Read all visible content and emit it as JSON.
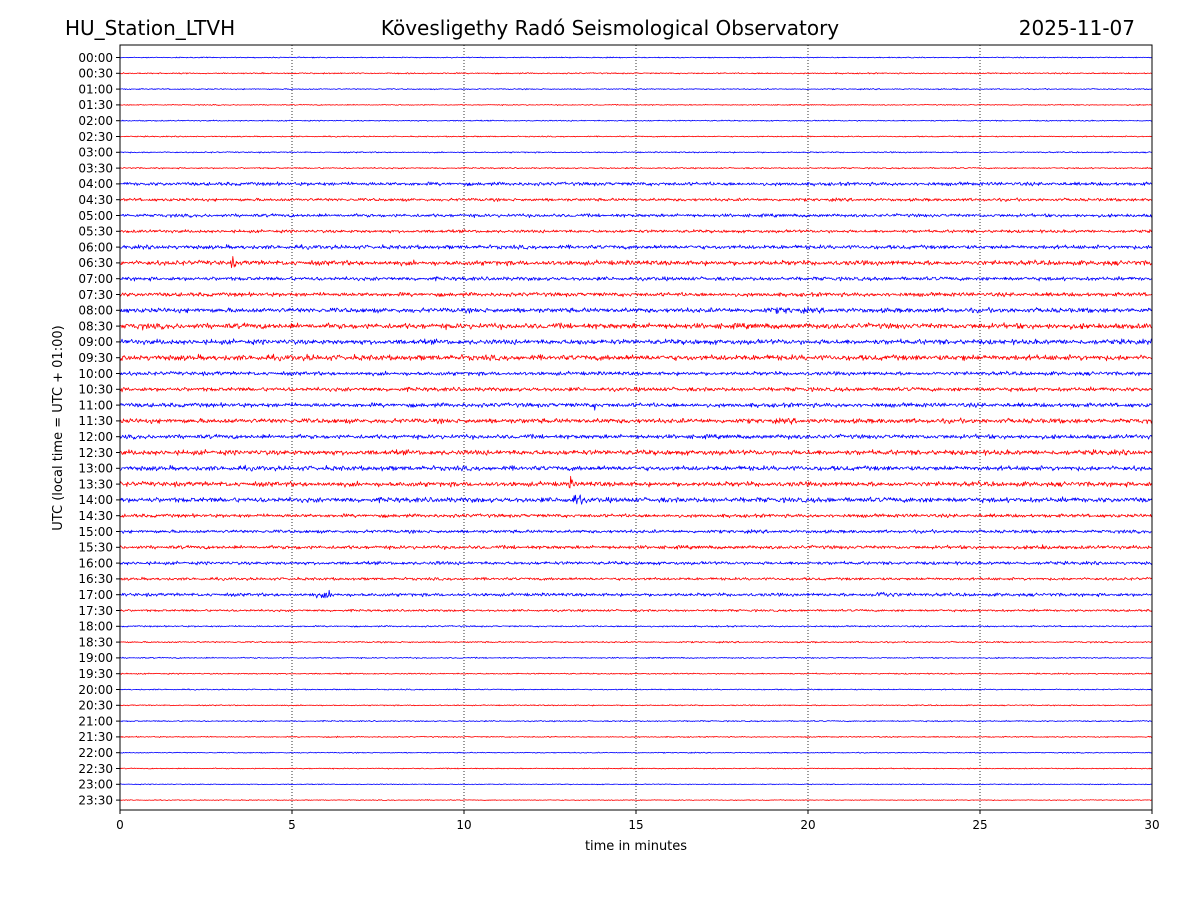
{
  "header": {
    "station": "HU_Station_LTVH",
    "observatory": "Kövesligethy Radó Seismological Observatory",
    "date": "2025-11-07"
  },
  "chart_data": {
    "type": "line",
    "title": "Kövesligethy Radó Seismological Observatory",
    "xlabel": "time in minutes",
    "ylabel": "UTC (local time = UTC + 01:00)",
    "xlim": [
      0,
      30
    ],
    "x_ticks": [
      "0",
      "5",
      "10",
      "15",
      "20",
      "25",
      "30"
    ],
    "x_tick_values": [
      0,
      5,
      10,
      15,
      20,
      25,
      30
    ],
    "grid": "vertical dotted lines at 5-minute intervals",
    "colors": {
      "even_trace": "#0000ff",
      "odd_trace": "#ff0000",
      "grid": "#000000"
    },
    "traces": [
      {
        "label": "00:00",
        "amp": 0.4,
        "bursts": []
      },
      {
        "label": "00:30",
        "amp": 0.5,
        "bursts": [
          [
            18.8,
            4.5,
            0.7
          ],
          [
            15.5,
            2.0,
            0.6
          ]
        ]
      },
      {
        "label": "01:00",
        "amp": 0.45,
        "bursts": [
          [
            24.5,
            1.5,
            0.4
          ]
        ]
      },
      {
        "label": "01:30",
        "amp": 0.4,
        "bursts": []
      },
      {
        "label": "02:00",
        "amp": 0.45,
        "bursts": [
          [
            25.3,
            2.5,
            0.5
          ]
        ]
      },
      {
        "label": "02:30",
        "amp": 0.45,
        "bursts": [
          [
            7.9,
            1.5,
            0.5
          ],
          [
            25.5,
            1.5,
            0.4
          ]
        ]
      },
      {
        "label": "03:00",
        "amp": 0.5,
        "bursts": [
          [
            2.8,
            1.2,
            0.4
          ]
        ]
      },
      {
        "label": "03:30",
        "amp": 0.55,
        "bursts": [
          [
            23.2,
            1.0,
            0.5
          ]
        ]
      },
      {
        "label": "04:00",
        "amp": 1.4,
        "bursts": [
          [
            7.2,
            3.0,
            1.6
          ],
          [
            9.3,
            2.0,
            1.5
          ],
          [
            18.0,
            3.0,
            1.0
          ]
        ]
      },
      {
        "label": "04:30",
        "amp": 1.2,
        "bursts": [
          [
            3.5,
            1.5,
            1.5
          ],
          [
            27.2,
            1.5,
            1.0
          ]
        ]
      },
      {
        "label": "05:00",
        "amp": 1.3,
        "bursts": [
          [
            6.5,
            2.5,
            1.5
          ],
          [
            21.5,
            1.5,
            1.4
          ]
        ]
      },
      {
        "label": "05:30",
        "amp": 1.2,
        "bursts": [
          [
            2.5,
            1.5,
            0.9
          ]
        ]
      },
      {
        "label": "06:00",
        "amp": 1.6,
        "bursts": [
          [
            10.0,
            3.0,
            1.2
          ],
          [
            27.0,
            3.0,
            1.2
          ]
        ]
      },
      {
        "label": "06:30",
        "amp": 1.9,
        "bursts": [
          [
            2.6,
            2.0,
            2.0
          ],
          [
            3.3,
            0.3,
            6.5
          ],
          [
            15.0,
            2.0,
            1.3
          ]
        ]
      },
      {
        "label": "07:00",
        "amp": 1.5,
        "bursts": [
          [
            14.5,
            2.0,
            1.2
          ]
        ]
      },
      {
        "label": "07:30",
        "amp": 1.6,
        "bursts": []
      },
      {
        "label": "08:00",
        "amp": 1.9,
        "bursts": [
          [
            19.3,
            5.0,
            3.2
          ]
        ]
      },
      {
        "label": "08:30",
        "amp": 2.2,
        "bursts": [
          [
            0.6,
            1.0,
            3.5
          ],
          [
            20.0,
            3.0,
            2.2
          ],
          [
            28.0,
            2.0,
            1.8
          ]
        ]
      },
      {
        "label": "09:00",
        "amp": 2.0,
        "bursts": [
          [
            13.4,
            0.3,
            5.5
          ],
          [
            28.5,
            3.0,
            2.5
          ]
        ]
      },
      {
        "label": "09:30",
        "amp": 2.2,
        "bursts": [
          [
            0.4,
            1.0,
            2.5
          ],
          [
            5.5,
            1.0,
            3.5
          ],
          [
            21.0,
            2.0,
            2.5
          ],
          [
            24.5,
            0.3,
            4.5
          ],
          [
            28.0,
            1.0,
            2.5
          ]
        ]
      },
      {
        "label": "10:00",
        "amp": 1.5,
        "bursts": [
          [
            2.9,
            0.6,
            2.2
          ]
        ]
      },
      {
        "label": "10:30",
        "amp": 1.6,
        "bursts": [
          [
            16.0,
            3.0,
            2.0
          ],
          [
            19.5,
            1.5,
            1.5
          ]
        ]
      },
      {
        "label": "11:00",
        "amp": 1.7,
        "bursts": [
          [
            13.8,
            0.4,
            3.5
          ],
          [
            20.0,
            3.0,
            2.0
          ]
        ]
      },
      {
        "label": "11:30",
        "amp": 1.9,
        "bursts": [
          [
            11.7,
            0.4,
            3.0
          ],
          [
            14.0,
            0.5,
            2.5
          ],
          [
            19.5,
            3.5,
            2.5
          ]
        ]
      },
      {
        "label": "12:00",
        "amp": 1.7,
        "bursts": [
          [
            19.5,
            2.5,
            2.5
          ]
        ]
      },
      {
        "label": "12:30",
        "amp": 2.0,
        "bursts": [
          [
            11.5,
            2.0,
            2.0
          ],
          [
            20.0,
            2.5,
            2.5
          ],
          [
            29.0,
            2.0,
            2.0
          ]
        ]
      },
      {
        "label": "13:00",
        "amp": 1.9,
        "bursts": [
          [
            7.7,
            1.5,
            2.8
          ]
        ]
      },
      {
        "label": "13:30",
        "amp": 1.9,
        "bursts": [
          [
            13.1,
            0.4,
            5.5
          ]
        ]
      },
      {
        "label": "14:00",
        "amp": 2.0,
        "bursts": [
          [
            12.9,
            0.3,
            4.0
          ],
          [
            13.3,
            0.6,
            8.5
          ],
          [
            20.5,
            3.5,
            2.5
          ],
          [
            23.2,
            2.0,
            3.0
          ]
        ]
      },
      {
        "label": "14:30",
        "amp": 1.4,
        "bursts": [
          [
            17.5,
            1.5,
            1.4
          ]
        ]
      },
      {
        "label": "15:00",
        "amp": 1.3,
        "bursts": [
          [
            4.5,
            0.6,
            1.5
          ]
        ]
      },
      {
        "label": "15:30",
        "amp": 1.4,
        "bursts": [
          [
            5.2,
            1.0,
            2.0
          ],
          [
            11.5,
            0.6,
            1.8
          ],
          [
            26.8,
            2.5,
            2.5
          ]
        ]
      },
      {
        "label": "16:00",
        "amp": 1.3,
        "bursts": [
          [
            9.3,
            2.0,
            2.0
          ],
          [
            27.0,
            2.0,
            1.8
          ]
        ]
      },
      {
        "label": "16:30",
        "amp": 1.1,
        "bursts": []
      },
      {
        "label": "17:00",
        "amp": 1.3,
        "bursts": [
          [
            6.0,
            2.0,
            3.5
          ],
          [
            22.2,
            2.0,
            3.5
          ]
        ]
      },
      {
        "label": "17:30",
        "amp": 0.9,
        "bursts": [
          [
            12.5,
            1.5,
            1.2
          ],
          [
            15.5,
            1.5,
            1.0
          ]
        ]
      },
      {
        "label": "18:00",
        "amp": 0.6,
        "bursts": []
      },
      {
        "label": "18:30",
        "amp": 0.6,
        "bursts": [
          [
            26.5,
            1.0,
            0.5
          ]
        ]
      },
      {
        "label": "19:00",
        "amp": 0.5,
        "bursts": []
      },
      {
        "label": "19:30",
        "amp": 0.5,
        "bursts": [
          [
            11.8,
            1.0,
            0.4
          ]
        ]
      },
      {
        "label": "20:00",
        "amp": 0.45,
        "bursts": []
      },
      {
        "label": "20:30",
        "amp": 0.45,
        "bursts": [
          [
            23.3,
            0.6,
            0.5
          ]
        ]
      },
      {
        "label": "21:00",
        "amp": 0.5,
        "bursts": [
          [
            23.8,
            1.0,
            0.7
          ]
        ]
      },
      {
        "label": "21:30",
        "amp": 0.45,
        "bursts": [
          [
            6.3,
            0.2,
            1.0
          ],
          [
            13.0,
            1.5,
            0.5
          ]
        ]
      },
      {
        "label": "22:00",
        "amp": 0.4,
        "bursts": [
          [
            23.0,
            0.5,
            0.5
          ]
        ]
      },
      {
        "label": "22:30",
        "amp": 0.4,
        "bursts": [
          [
            16.5,
            1.0,
            0.5
          ]
        ]
      },
      {
        "label": "23:00",
        "amp": 0.35,
        "bursts": [
          [
            2.2,
            1.0,
            0.4
          ]
        ]
      },
      {
        "label": "23:30",
        "amp": 0.35,
        "bursts": [
          [
            2.5,
            0.3,
            0.5
          ]
        ]
      }
    ]
  }
}
